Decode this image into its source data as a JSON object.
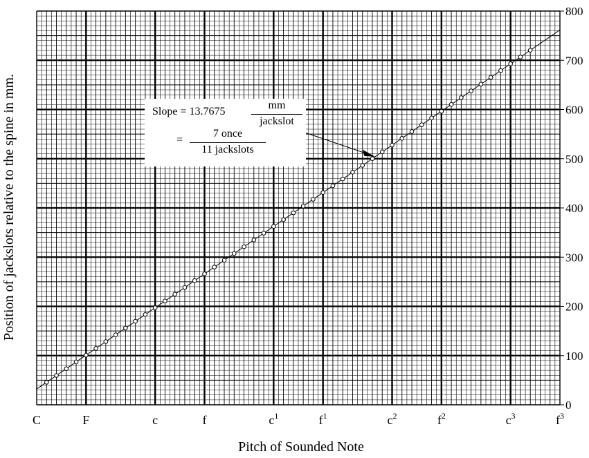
{
  "chart_data": {
    "type": "scatter",
    "title": "",
    "xlabel": "Pitch of Sounded Note",
    "ylabel": "Position of jackslots relative to the spine in mm.",
    "x_ticks": [
      {
        "note": "C",
        "sup": "",
        "semitone": 0
      },
      {
        "note": "F",
        "sup": "",
        "semitone": 5
      },
      {
        "note": "c",
        "sup": "",
        "semitone": 12
      },
      {
        "note": "f",
        "sup": "",
        "semitone": 17
      },
      {
        "note": "c",
        "sup": "1",
        "semitone": 24
      },
      {
        "note": "f",
        "sup": "1",
        "semitone": 29
      },
      {
        "note": "c",
        "sup": "2",
        "semitone": 36
      },
      {
        "note": "f",
        "sup": "2",
        "semitone": 41
      },
      {
        "note": "c",
        "sup": "3",
        "semitone": 48
      },
      {
        "note": "f",
        "sup": "3",
        "semitone": 53
      }
    ],
    "xlim": [
      0,
      53
    ],
    "ylim": [
      0,
      800
    ],
    "y_ticks": [
      "0",
      "100",
      "200",
      "300",
      "400",
      "500",
      "600",
      "700",
      "800"
    ],
    "grid": true,
    "fit_line": {
      "slope": 13.7675,
      "intercept": 32
    },
    "points": {
      "x_start": 1,
      "x_end": 48,
      "x_step": 1,
      "y_start": 45.8,
      "y_step": 13.7675,
      "extra": [
        {
          "x": 49,
          "y": 706.6
        },
        {
          "x": 50,
          "y": 720.4
        }
      ]
    },
    "annotation": {
      "line1_prefix": "Slope = 13.7675",
      "line1_num": "mm",
      "line1_den": "jackslot",
      "line2_prefix": "=",
      "line2_num": "7 once",
      "line2_den": "11 jackslots",
      "arrow_target": {
        "x": 34.3,
        "y": 504
      }
    }
  }
}
